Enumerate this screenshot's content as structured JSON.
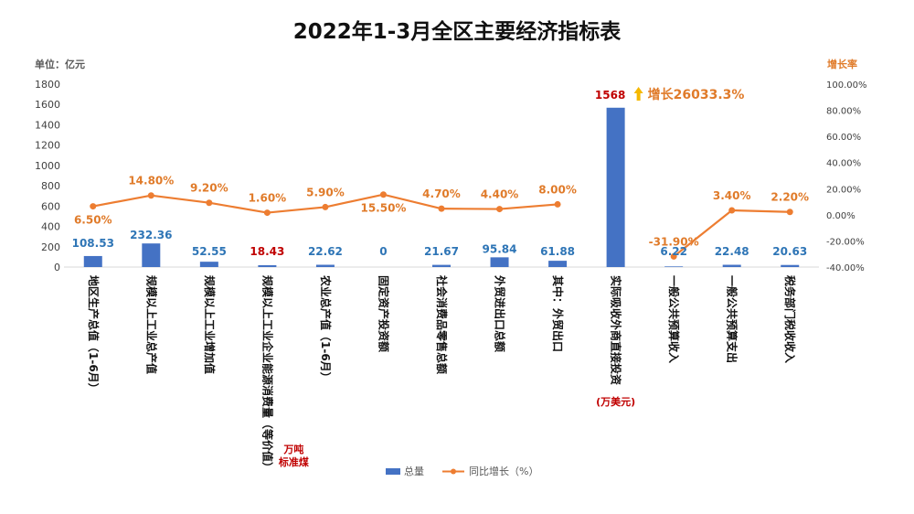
{
  "chart_data": {
    "type": "bar",
    "title": "2022年1-3月全区主要经济指标表",
    "y_left_label": "单位：亿元",
    "y_right_label": "增长率",
    "ylim_left": [
      0,
      1800
    ],
    "yticks_left": [
      "0",
      "200",
      "400",
      "600",
      "800",
      "1000",
      "1200",
      "1400",
      "1600",
      "1800"
    ],
    "ylim_right": [
      -40,
      100
    ],
    "yticks_right": [
      "-40.00%",
      "-20.00%",
      "0.00%",
      "20.00%",
      "40.00%",
      "60.00%",
      "80.00%",
      "100.00%"
    ],
    "grid": false,
    "legend_position": "bottom",
    "categories": [
      "地区生产总值（1-6月）",
      "规模以上工业总产值",
      "规模以上工业增加值",
      "规模以上工业企业能源消费量（等价值）",
      "农业总产值（1-6月）",
      "固定资产投资额",
      "社会消费品零售总额",
      "外贸进出口总额",
      "其中：外贸出口",
      "实际吸收外商直接投资",
      "一般公共预算收入",
      "一般公共预算支出",
      "税务部门税收收入"
    ],
    "series": [
      {
        "name": "总量",
        "type": "bar",
        "axis": "left",
        "color": "#4472c4",
        "values": [
          108.53,
          232.36,
          52.55,
          18.43,
          22.62,
          0,
          21.67,
          95.84,
          61.88,
          1568,
          6.22,
          22.48,
          20.63
        ],
        "labels": [
          "108.53",
          "232.36",
          "52.55",
          "18.43",
          "22.62",
          "0",
          "21.67",
          "95.84",
          "61.88",
          "1568",
          "6.22",
          "22.48",
          "20.63"
        ]
      },
      {
        "name": "同比增长（%）",
        "type": "line",
        "axis": "right",
        "color": "#ed7d31",
        "values": [
          6.5,
          14.8,
          9.2,
          1.6,
          5.9,
          15.5,
          4.7,
          4.4,
          8.0,
          null,
          -31.9,
          3.4,
          2.2
        ],
        "labels": [
          "6.50%",
          "14.80%",
          "9.20%",
          "1.60%",
          "5.90%",
          "15.50%",
          "4.70%",
          "4.40%",
          "8.00%",
          "",
          "-31.90%",
          "3.40%",
          "2.20%"
        ]
      }
    ],
    "annotations": {
      "growth_highlight": "增长26033.3%",
      "arrow_color": "#f5b800",
      "unit_notes": {
        "energy": "万吨\n标准煤",
        "fdi": "(万美元)"
      }
    },
    "colors": {
      "value_label_blue": "#2e75b6",
      "value_label_red": "#c00000"
    }
  }
}
